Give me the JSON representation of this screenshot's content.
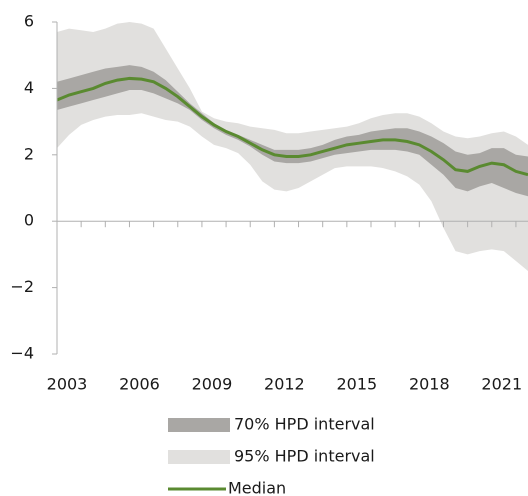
{
  "chart_data": {
    "type": "line",
    "x": [
      2003,
      2003.5,
      2004,
      2004.5,
      2005,
      2005.5,
      2006,
      2006.5,
      2007,
      2007.5,
      2008,
      2008.5,
      2009,
      2009.5,
      2010,
      2010.5,
      2011,
      2011.5,
      2012,
      2012.5,
      2013,
      2013.5,
      2014,
      2014.5,
      2015,
      2015.5,
      2016,
      2016.5,
      2017,
      2017.5,
      2018,
      2018.5,
      2019,
      2019.5,
      2020,
      2020.5,
      2021,
      2021.5,
      2022,
      2022.5
    ],
    "bands": [
      {
        "name": "70% HPD interval",
        "color": "#a9a7a4",
        "upper": [
          4.2,
          4.3,
          4.4,
          4.5,
          4.6,
          4.65,
          4.7,
          4.65,
          4.5,
          4.25,
          3.9,
          3.55,
          3.25,
          2.95,
          2.75,
          2.6,
          2.45,
          2.3,
          2.15,
          2.15,
          2.15,
          2.2,
          2.3,
          2.45,
          2.55,
          2.6,
          2.7,
          2.75,
          2.8,
          2.8,
          2.7,
          2.55,
          2.35,
          2.1,
          2.0,
          2.05,
          2.2,
          2.2,
          2.0,
          1.95
        ],
        "lower": [
          3.35,
          3.45,
          3.55,
          3.65,
          3.75,
          3.85,
          3.95,
          3.95,
          3.85,
          3.7,
          3.55,
          3.35,
          3.05,
          2.8,
          2.6,
          2.45,
          2.25,
          2.0,
          1.8,
          1.75,
          1.75,
          1.8,
          1.9,
          2.0,
          2.05,
          2.1,
          2.15,
          2.15,
          2.15,
          2.1,
          2.0,
          1.7,
          1.4,
          1.0,
          0.9,
          1.05,
          1.15,
          1.0,
          0.85,
          0.75
        ]
      },
      {
        "name": "95% HPD interval",
        "color": "#e1e0de",
        "upper": [
          5.7,
          5.8,
          5.75,
          5.7,
          5.8,
          5.95,
          6.0,
          5.95,
          5.8,
          5.2,
          4.6,
          4.0,
          3.3,
          3.1,
          3.0,
          2.95,
          2.85,
          2.8,
          2.75,
          2.65,
          2.65,
          2.7,
          2.75,
          2.8,
          2.85,
          2.95,
          3.1,
          3.2,
          3.25,
          3.25,
          3.15,
          2.95,
          2.7,
          2.55,
          2.5,
          2.55,
          2.65,
          2.7,
          2.55,
          2.3
        ],
        "lower": [
          2.2,
          2.6,
          2.9,
          3.05,
          3.15,
          3.2,
          3.2,
          3.25,
          3.15,
          3.05,
          3.0,
          2.85,
          2.55,
          2.3,
          2.2,
          2.05,
          1.7,
          1.2,
          0.95,
          0.9,
          1.0,
          1.2,
          1.4,
          1.6,
          1.65,
          1.65,
          1.65,
          1.6,
          1.5,
          1.35,
          1.1,
          0.6,
          -0.2,
          -0.9,
          -1.0,
          -0.9,
          -0.85,
          -0.9,
          -1.2,
          -1.5
        ]
      }
    ],
    "series": [
      {
        "name": "Median",
        "color": "#5a8a30",
        "values": [
          3.65,
          3.8,
          3.9,
          4.0,
          4.15,
          4.25,
          4.3,
          4.28,
          4.2,
          4.0,
          3.75,
          3.45,
          3.15,
          2.9,
          2.7,
          2.55,
          2.35,
          2.15,
          2.0,
          1.95,
          1.95,
          2.0,
          2.1,
          2.2,
          2.3,
          2.35,
          2.4,
          2.45,
          2.45,
          2.4,
          2.3,
          2.1,
          1.85,
          1.55,
          1.5,
          1.65,
          1.75,
          1.7,
          1.5,
          1.4
        ]
      }
    ],
    "xlim": [
      2003,
      2022.5
    ],
    "xticks": [
      2003,
      2006,
      2009,
      2012,
      2015,
      2018,
      2021
    ],
    "xminorticks": [
      2004,
      2005,
      2007,
      2008,
      2010,
      2011,
      2013,
      2014,
      2016,
      2017,
      2019,
      2020,
      2022
    ],
    "ylim": [
      -4,
      6
    ],
    "yticks": [
      {
        "value": -4,
        "label": "−4"
      },
      {
        "value": -2,
        "label": "−2"
      },
      0,
      2,
      4,
      6
    ]
  }
}
